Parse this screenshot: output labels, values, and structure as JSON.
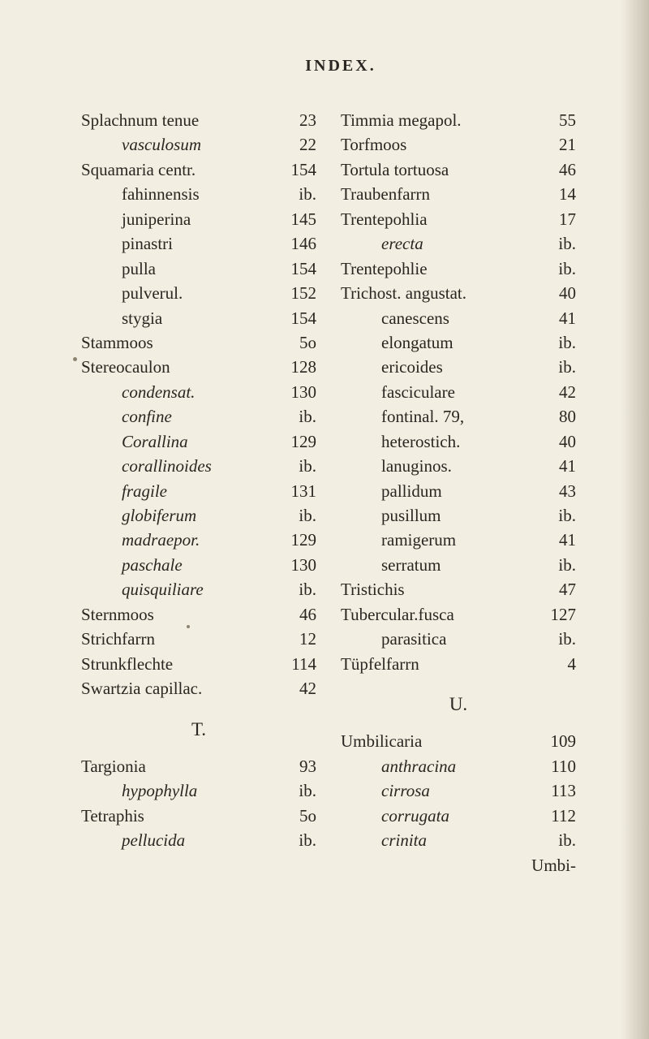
{
  "page": {
    "background_color": "#f2eee1",
    "text_color": "#2a2621",
    "font_family": "Georgia, Times New Roman, serif",
    "base_fontsize": 21,
    "heading_fontsize": 20,
    "heading_letter_spacing": 3,
    "line_height": 1.45
  },
  "heading": "INDEX.",
  "left_col": [
    {
      "label": "Splachnum tenue",
      "num": "23",
      "indent": 0
    },
    {
      "label": "vasculosum",
      "num": "22",
      "indent": 1,
      "italic": true
    },
    {
      "label": "Squamaria centr.",
      "num": "154",
      "indent": 0
    },
    {
      "label": "fahinnensis",
      "num": "ib.",
      "indent": 1
    },
    {
      "label": "juniperina",
      "num": "145",
      "indent": 1
    },
    {
      "label": "pinastri",
      "num": "146",
      "indent": 1
    },
    {
      "label": "pulla",
      "num": "154",
      "indent": 1
    },
    {
      "label": "pulverul.",
      "num": "152",
      "indent": 1
    },
    {
      "label": "stygia",
      "num": "154",
      "indent": 1
    },
    {
      "label": "Stammoos",
      "num": "5o",
      "indent": 0
    },
    {
      "label": "Stereocaulon",
      "num": "128",
      "indent": 0
    },
    {
      "label": "condensat.",
      "num": "130",
      "indent": 1,
      "italic": true
    },
    {
      "label": "confine",
      "num": "ib.",
      "indent": 1,
      "italic": true
    },
    {
      "label": "Corallina",
      "num": "129",
      "indent": 1,
      "italic": true
    },
    {
      "label": "corallinoides",
      "num": "ib.",
      "indent": 1,
      "italic": true
    },
    {
      "label": "fragile",
      "num": "131",
      "indent": 1,
      "italic": true
    },
    {
      "label": "globiferum",
      "num": "ib.",
      "indent": 1,
      "italic": true
    },
    {
      "label": "madraepor.",
      "num": "129",
      "indent": 1,
      "italic": true
    },
    {
      "label": "paschale",
      "num": "130",
      "indent": 1,
      "italic": true
    },
    {
      "label": "quisquiliare",
      "num": "ib.",
      "indent": 1,
      "italic": true
    },
    {
      "label": "Sternmoos",
      "num": "46",
      "indent": 0
    },
    {
      "label": "Strichfarrn",
      "num": "12",
      "indent": 0
    },
    {
      "label": "Strunkflechte",
      "num": "114",
      "indent": 0
    },
    {
      "label": "Swartzia capillac.",
      "num": "42",
      "indent": 0
    }
  ],
  "left_section_T": "T.",
  "left_col_T": [
    {
      "label": "Targionia",
      "num": "93",
      "indent": 0
    },
    {
      "label": "hypophylla",
      "num": "ib.",
      "indent": 1,
      "italic": true
    },
    {
      "label": "Tetraphis",
      "num": "5o",
      "indent": 0
    },
    {
      "label": "pellucida",
      "num": "ib.",
      "indent": 1,
      "italic": true
    }
  ],
  "right_col": [
    {
      "label": "Timmia megapol.",
      "num": "55",
      "indent": 0
    },
    {
      "label": "Torfmoos",
      "num": "21",
      "indent": 0
    },
    {
      "label": "Tortula tortuosa",
      "num": "46",
      "indent": 0
    },
    {
      "label": "Traubenfarrn",
      "num": "14",
      "indent": 0
    },
    {
      "label": "Trentepohlia",
      "num": "17",
      "indent": 0
    },
    {
      "label": "erecta",
      "num": "ib.",
      "indent": 1,
      "italic": true
    },
    {
      "label": "Trentepohlie",
      "num": "ib.",
      "indent": 0
    },
    {
      "label": "Trichost. angustat.",
      "num": "40",
      "indent": 0
    },
    {
      "label": "canescens",
      "num": "41",
      "indent": 1
    },
    {
      "label": "elongatum",
      "num": "ib.",
      "indent": 1
    },
    {
      "label": "ericoides",
      "num": "ib.",
      "indent": 1
    },
    {
      "label": "fasciculare",
      "num": "42",
      "indent": 1
    },
    {
      "label": "fontinal. 79,",
      "num": "80",
      "indent": 1
    },
    {
      "label": "heterostich.",
      "num": "40",
      "indent": 1
    },
    {
      "label": "lanuginos.",
      "num": "41",
      "indent": 1
    },
    {
      "label": "pallidum",
      "num": "43",
      "indent": 1
    },
    {
      "label": "pusillum",
      "num": "ib.",
      "indent": 1
    },
    {
      "label": "ramigerum",
      "num": "41",
      "indent": 1
    },
    {
      "label": "serratum",
      "num": "ib.",
      "indent": 1
    },
    {
      "label": "Tristichis",
      "num": "47",
      "indent": 0
    },
    {
      "label": "Tubercular.fusca",
      "num": "127",
      "indent": 0
    },
    {
      "label": "parasitica",
      "num": "ib.",
      "indent": 1
    },
    {
      "label": "Tüpfelfarrn",
      "num": "4",
      "indent": 0
    }
  ],
  "right_section_U": "U.",
  "right_col_U": [
    {
      "label": "Umbilicaria",
      "num": "109",
      "indent": 0
    },
    {
      "label": "anthracina",
      "num": "110",
      "indent": 1,
      "italic": true
    },
    {
      "label": "cirrosa",
      "num": "113",
      "indent": 1,
      "italic": true
    },
    {
      "label": "corrugata",
      "num": "112",
      "indent": 1,
      "italic": true
    },
    {
      "label": "crinita",
      "num": "ib.",
      "indent": 1,
      "italic": true
    },
    {
      "label": "",
      "num": "Umbi-",
      "indent": 1
    }
  ]
}
